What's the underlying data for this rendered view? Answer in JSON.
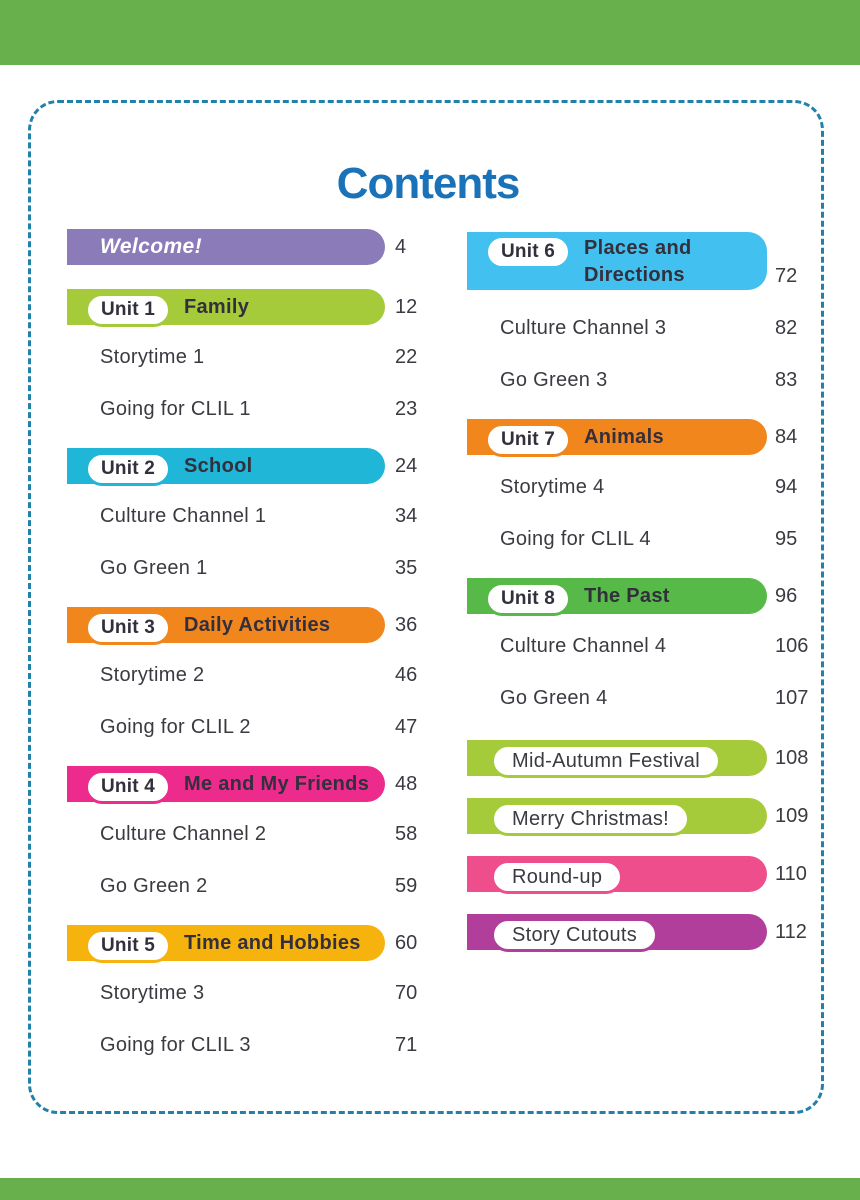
{
  "title": "Contents",
  "colors": {
    "top_bar": "#68b04b",
    "bottom_bar": "#68b04b",
    "frame_border": "#2181aa",
    "title": "#1a72b8",
    "ink": "#332f3c",
    "row_ink": "#3b3a41",
    "welcome": "#8b7cb9",
    "unit1": "#a6cb3a",
    "unit2": "#1fb6d8",
    "unit3": "#f1861c",
    "unit4": "#ec2b8d",
    "unit5": "#f6b30d",
    "unit6": "#42c0ef",
    "unit7": "#f1861c",
    "unit8": "#56b948",
    "festival": "#a6cb3a",
    "roundup": "#ee4e8c",
    "cutouts": "#b23e9b"
  },
  "toc": {
    "left": [
      {
        "label": "Welcome!",
        "page": "4"
      },
      {
        "unit": "Unit 1",
        "label": "Family",
        "page": "12"
      },
      {
        "label": "Storytime 1",
        "page": "22"
      },
      {
        "label": "Going for CLIL 1",
        "page": "23"
      },
      {
        "unit": "Unit 2",
        "label": "School",
        "page": "24"
      },
      {
        "label": "Culture Channel 1",
        "page": "34"
      },
      {
        "label": "Go Green 1",
        "page": "35"
      },
      {
        "unit": "Unit 3",
        "label": "Daily Activities",
        "page": "36"
      },
      {
        "label": "Storytime 2",
        "page": "46"
      },
      {
        "label": "Going for CLIL 2",
        "page": "47"
      },
      {
        "unit": "Unit 4",
        "label": "Me and My Friends",
        "page": "48"
      },
      {
        "label": "Culture Channel 2",
        "page": "58"
      },
      {
        "label": "Go Green 2",
        "page": "59"
      },
      {
        "unit": "Unit 5",
        "label": "Time and Hobbies",
        "page": "60"
      },
      {
        "label": "Storytime 3",
        "page": "70"
      },
      {
        "label": "Going for CLIL 3",
        "page": "71"
      }
    ],
    "right": [
      {
        "unit": "Unit 6",
        "label": "Places and Directions",
        "page": "72"
      },
      {
        "label": "Culture Channel 3",
        "page": "82"
      },
      {
        "label": "Go Green 3",
        "page": "83"
      },
      {
        "unit": "Unit 7",
        "label": "Animals",
        "page": "84"
      },
      {
        "label": "Storytime 4",
        "page": "94"
      },
      {
        "label": "Going for CLIL 4",
        "page": "95"
      },
      {
        "unit": "Unit 8",
        "label": "The Past",
        "page": "96"
      },
      {
        "label": "Culture Channel 4",
        "page": "106"
      },
      {
        "label": "Go Green 4",
        "page": "107"
      },
      {
        "label": "Mid-Autumn Festival",
        "page": "108"
      },
      {
        "label": "Merry Christmas!",
        "page": "109"
      },
      {
        "label": "Round-up",
        "page": "110"
      },
      {
        "label": "Story Cutouts",
        "page": "112"
      }
    ]
  }
}
